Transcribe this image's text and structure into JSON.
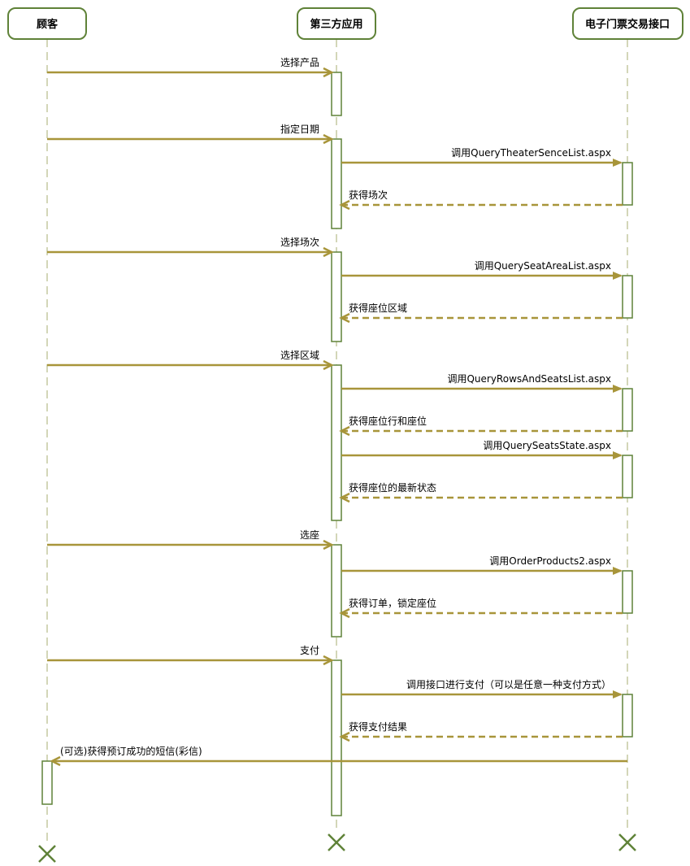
{
  "colors": {
    "line": "#a8953a",
    "border": "#5f8238",
    "lifeline": "#d3d6b8"
  },
  "participants": [
    {
      "name": "顾客"
    },
    {
      "name": "第三方应用"
    },
    {
      "name": "电子门票交易接口"
    }
  ],
  "messages": [
    {
      "from": 0,
      "to": 1,
      "kind": "call",
      "label": "选择产品"
    },
    {
      "from": 0,
      "to": 1,
      "kind": "call",
      "label": "指定日期"
    },
    {
      "from": 1,
      "to": 2,
      "kind": "call",
      "label": "调用QueryTheaterSenceList.aspx"
    },
    {
      "from": 2,
      "to": 1,
      "kind": "return",
      "label": "获得场次"
    },
    {
      "from": 0,
      "to": 1,
      "kind": "call",
      "label": "选择场次"
    },
    {
      "from": 1,
      "to": 2,
      "kind": "call",
      "label": "调用QuerySeatAreaList.aspx"
    },
    {
      "from": 2,
      "to": 1,
      "kind": "return",
      "label": "获得座位区域"
    },
    {
      "from": 0,
      "to": 1,
      "kind": "call",
      "label": "选择区域"
    },
    {
      "from": 1,
      "to": 2,
      "kind": "call",
      "label": "调用QueryRowsAndSeatsList.aspx"
    },
    {
      "from": 2,
      "to": 1,
      "kind": "return",
      "label": "获得座位行和座位"
    },
    {
      "from": 1,
      "to": 2,
      "kind": "call",
      "label": "调用QuerySeatsState.aspx"
    },
    {
      "from": 2,
      "to": 1,
      "kind": "return",
      "label": "获得座位的最新状态"
    },
    {
      "from": 0,
      "to": 1,
      "kind": "call",
      "label": "选座"
    },
    {
      "from": 1,
      "to": 2,
      "kind": "call",
      "label": "调用OrderProducts2.aspx"
    },
    {
      "from": 2,
      "to": 1,
      "kind": "return",
      "label": "获得订单，锁定座位"
    },
    {
      "from": 0,
      "to": 1,
      "kind": "call",
      "label": "支付"
    },
    {
      "from": 1,
      "to": 2,
      "kind": "call",
      "label": "调用接口进行支付（可以是任意一种支付方式）"
    },
    {
      "from": 2,
      "to": 1,
      "kind": "return",
      "label": "获得支付结果"
    },
    {
      "from": 2,
      "to": 0,
      "kind": "call",
      "label": "(可选)获得预订成功的短信(彩信)"
    }
  ]
}
